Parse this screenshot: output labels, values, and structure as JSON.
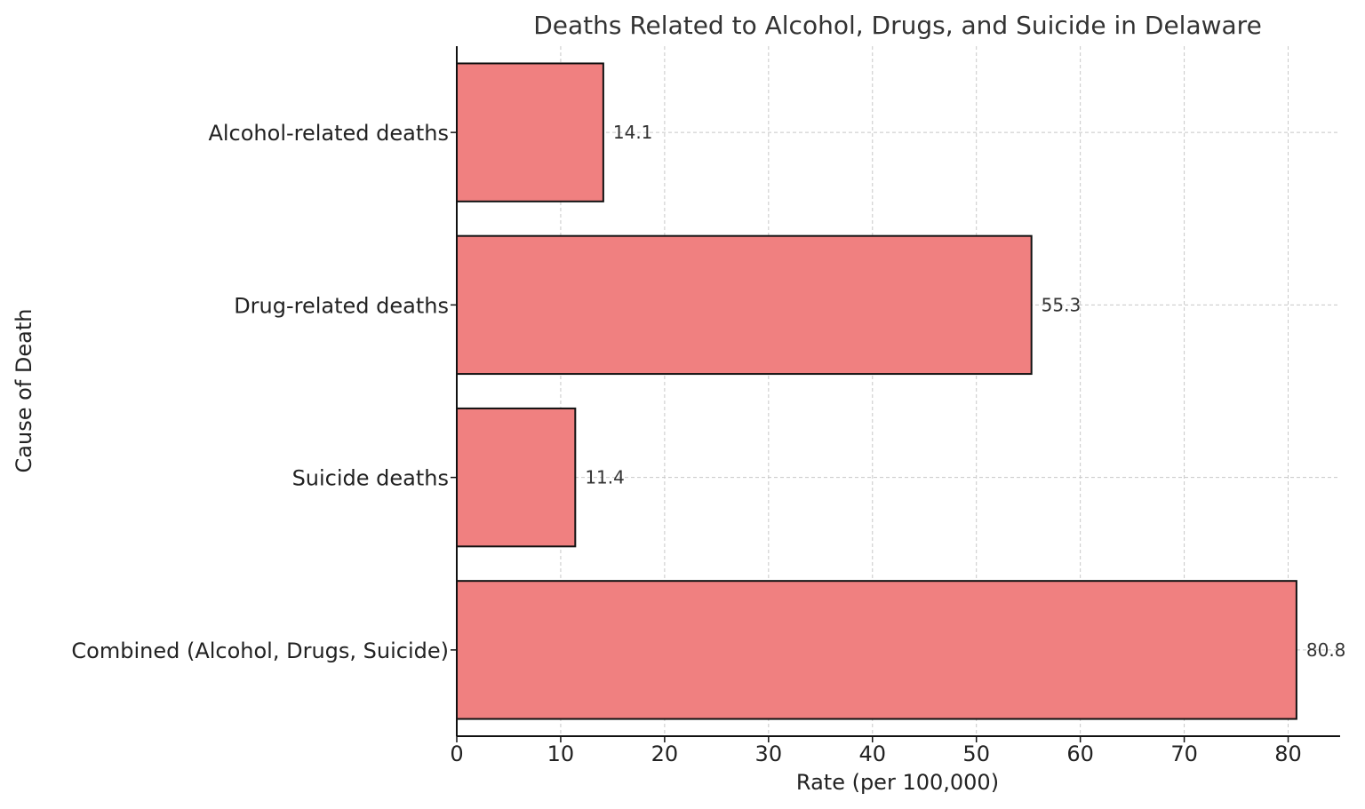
{
  "chart_data": {
    "type": "bar",
    "orientation": "horizontal",
    "title": "Deaths Related to Alcohol, Drugs, and Suicide in Delaware",
    "xlabel": "Rate (per 100,000)",
    "ylabel": "Cause of Death",
    "categories": [
      "Alcohol-related deaths",
      "Drug-related deaths",
      "Suicide deaths",
      "Combined (Alcohol, Drugs, Suicide)"
    ],
    "values": [
      14.1,
      55.3,
      11.4,
      80.8
    ],
    "value_labels": [
      "14.1",
      "55.3",
      "11.4",
      "80.8"
    ],
    "xlim": [
      0,
      85
    ],
    "xticks": [
      0,
      10,
      20,
      30,
      40,
      50,
      60,
      70,
      80
    ],
    "xtick_labels": [
      "0",
      "10",
      "20",
      "30",
      "40",
      "50",
      "60",
      "70",
      "80"
    ],
    "grid": true,
    "bar_color": "#f08080",
    "edge_color": "#111111"
  }
}
